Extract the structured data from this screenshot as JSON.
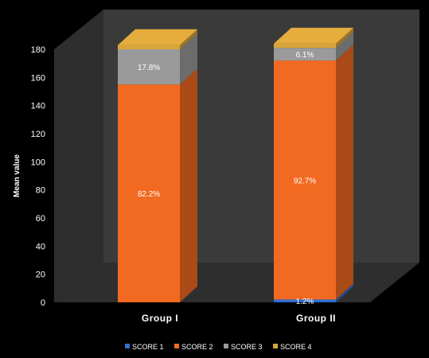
{
  "chart_data": {
    "type": "bar",
    "stacked": true,
    "style": "3d",
    "categories": [
      "Group I",
      "Group II"
    ],
    "series": [
      {
        "name": "SCORE 1",
        "color": "#2f6fd0",
        "values": [
          0,
          2
        ],
        "labels": [
          "",
          "1.2%"
        ]
      },
      {
        "name": "SCORE 2",
        "color": "#f26a21",
        "values": [
          155,
          170
        ],
        "labels": [
          "82.2%",
          "92.7%"
        ]
      },
      {
        "name": "SCORE 3",
        "color": "#9a9a9a",
        "values": [
          25,
          9
        ],
        "labels": [
          "17.8%",
          "6.1%"
        ]
      },
      {
        "name": "SCORE 4",
        "color": "#d9a53a",
        "values": [
          3,
          3
        ],
        "labels": [
          "",
          ""
        ]
      }
    ],
    "ylabel": "Mean value",
    "xlabel": "",
    "title": "",
    "ylim": [
      0,
      180
    ],
    "yticks": [
      0,
      20,
      40,
      60,
      80,
      100,
      120,
      140,
      160,
      180
    ],
    "grid": false,
    "legend": "bottom",
    "background": "#000000",
    "wall_color": "#3a3a3a",
    "floor_color": "#2e2e2e"
  }
}
